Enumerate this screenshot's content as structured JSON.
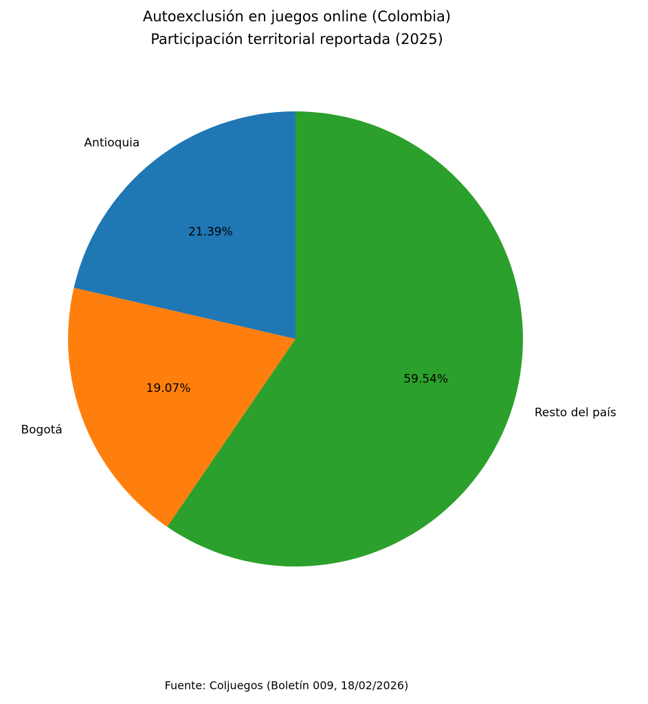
{
  "chart_data": {
    "type": "pie",
    "title": "Autoexclusión en juegos online (Colombia)",
    "subtitle": "Participación territorial reportada (2025)",
    "categories": [
      "Antioquia",
      "Bogotá",
      "Resto del país"
    ],
    "values": [
      21.39,
      19.07,
      59.54
    ],
    "value_labels": [
      "21.39%",
      "19.07%",
      "59.54%"
    ],
    "colors": [
      "#1f77b4",
      "#ff7f0e",
      "#2ca02c"
    ],
    "source": "Fuente: Coljuegos (Boletín 009, 18/02/2026)"
  }
}
